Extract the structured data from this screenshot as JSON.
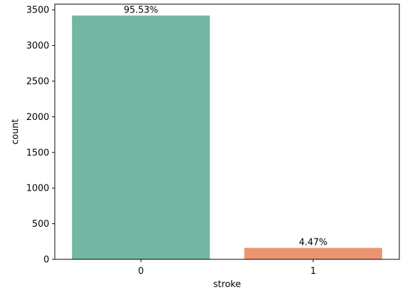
{
  "chart_data": {
    "type": "bar",
    "title": "",
    "categories": [
      "0",
      "1"
    ],
    "values": [
      3420,
      160
    ],
    "data_labels": [
      "95.53%",
      "4.47%"
    ],
    "colors": [
      "#73b6a1",
      "#ec9472"
    ],
    "xlabel": "stroke",
    "ylabel": "count",
    "ylim": [
      0,
      3580
    ],
    "yticks": [
      0,
      500,
      1000,
      1500,
      2000,
      2500,
      3000,
      3500
    ],
    "grid": false,
    "legend": "none"
  }
}
